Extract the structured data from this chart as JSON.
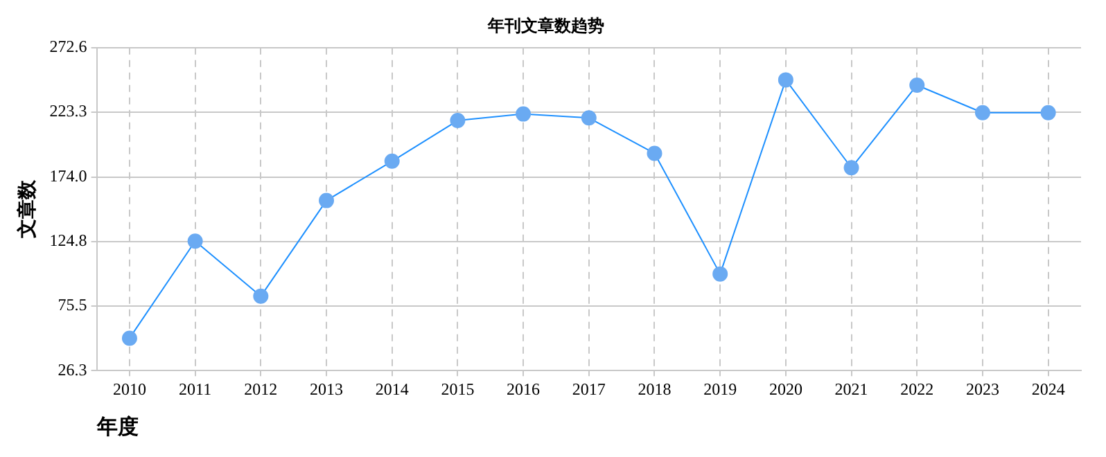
{
  "chart_data": {
    "type": "line",
    "title": "年刊文章数趋势",
    "xlabel": "年度",
    "ylabel": "文章数",
    "categories": [
      "2010",
      "2011",
      "2012",
      "2013",
      "2014",
      "2015",
      "2016",
      "2017",
      "2018",
      "2019",
      "2020",
      "2021",
      "2022",
      "2023",
      "2024"
    ],
    "series": [
      {
        "color": "#1e90ff",
        "values": [
          51,
          125,
          83,
          156,
          186,
          217,
          222,
          219,
          192,
          100,
          248,
          181,
          244,
          223,
          223
        ]
      }
    ],
    "ylim": [
      26.3,
      272.6
    ],
    "yticks": [
      {
        "value": 26.3,
        "label": "26.3"
      },
      {
        "value": 75.5,
        "label": "75.5"
      },
      {
        "value": 124.8,
        "label": "124.8"
      },
      {
        "value": 174,
        "label": "174.0"
      },
      {
        "value": 223.3,
        "label": "223.3"
      },
      {
        "value": 272.6,
        "label": "272.6"
      }
    ],
    "grid": true,
    "marker": "circle",
    "line_style": "solid",
    "legend": false
  }
}
